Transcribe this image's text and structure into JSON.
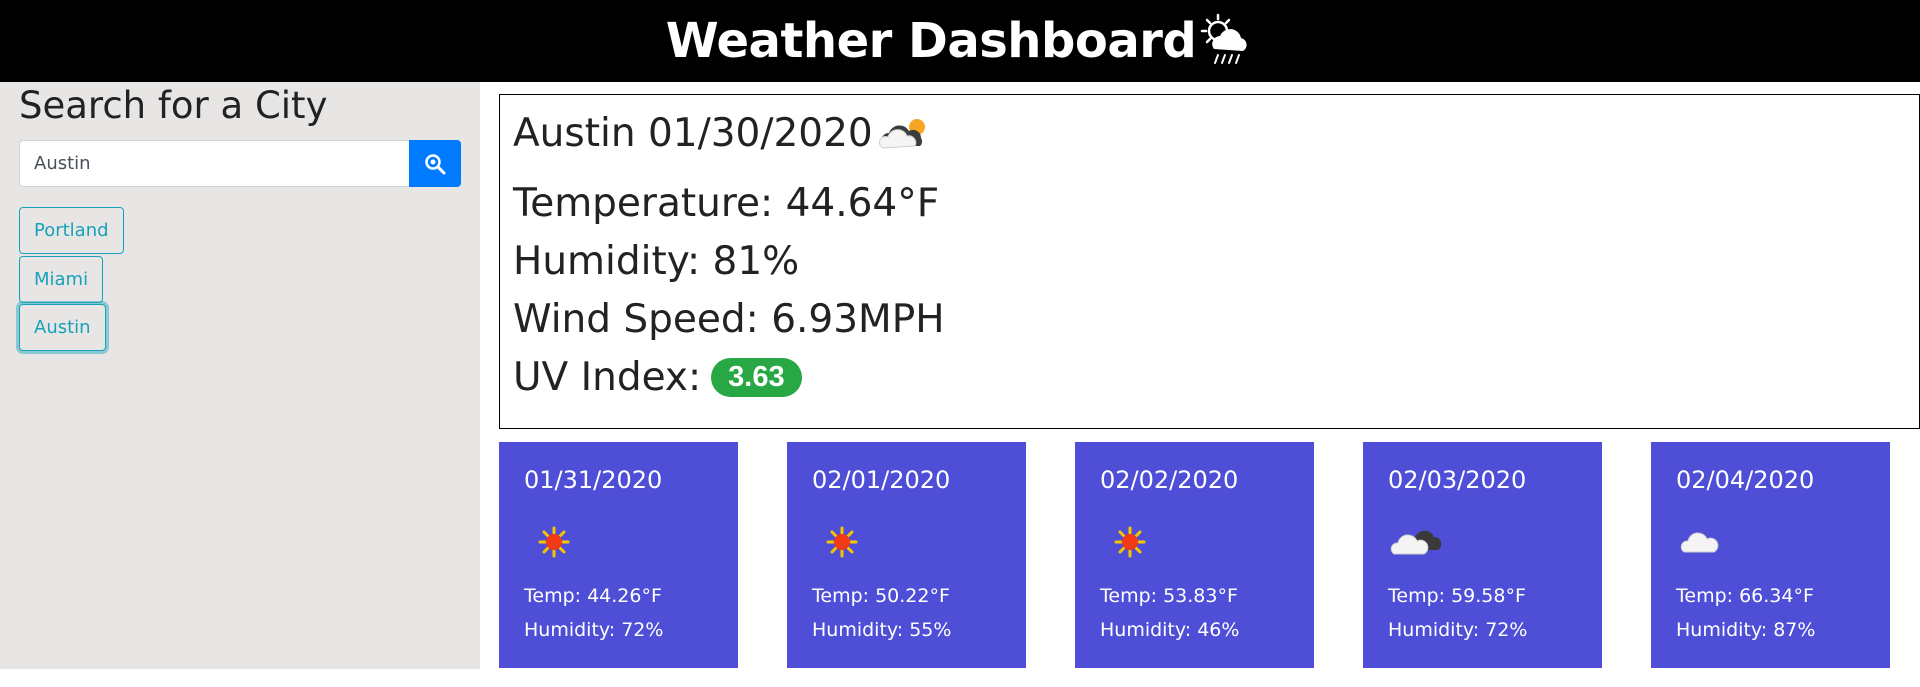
{
  "header": {
    "title": "Weather Dashboard",
    "icon": "sun-behind-rain-cloud-icon"
  },
  "sidebar": {
    "heading": "Search for a City",
    "search": {
      "value": "Austin",
      "button_icon": "search-icon",
      "button_color": "#007bff"
    },
    "history": [
      {
        "label": "Portland",
        "active": false
      },
      {
        "label": "Miami",
        "active": false
      },
      {
        "label": "Austin",
        "active": true
      }
    ]
  },
  "current": {
    "title": "Austin 01/30/2020",
    "icon": "sun-behind-cloud-icon",
    "temperature": "Temperature: 44.64°F",
    "humidity": "Humidity: 81%",
    "wind": "Wind Speed: 6.93MPH",
    "uv_label": "UV Index:",
    "uv_value": "3.63",
    "uv_color": "#28a745"
  },
  "forecast": [
    {
      "date": "01/31/2020",
      "icon": "sun-icon",
      "temp": "Temp: 44.26°F",
      "humidity": "Humidity: 72%"
    },
    {
      "date": "02/01/2020",
      "icon": "sun-icon",
      "temp": "Temp: 50.22°F",
      "humidity": "Humidity: 55%"
    },
    {
      "date": "02/02/2020",
      "icon": "sun-icon",
      "temp": "Temp: 53.83°F",
      "humidity": "Humidity: 46%"
    },
    {
      "date": "02/03/2020",
      "icon": "cloud-icon",
      "temp": "Temp: 59.58°F",
      "humidity": "Humidity: 72%"
    },
    {
      "date": "02/04/2020",
      "icon": "cloud-icon",
      "temp": "Temp: 66.34°F",
      "humidity": "Humidity: 87%"
    }
  ],
  "colors": {
    "card_bg": "#4e4fd6",
    "header_bg": "#000000",
    "sidebar_bg": "#e8e6e5",
    "history_btn": "#17a2b8"
  }
}
